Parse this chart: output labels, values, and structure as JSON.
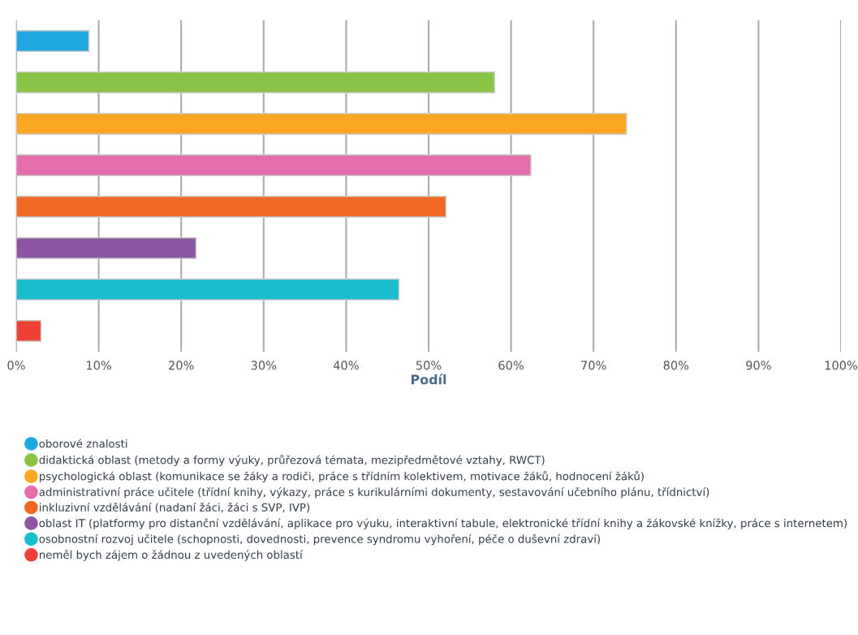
{
  "chart_data": {
    "type": "bar",
    "orientation": "horizontal",
    "xlabel": "Podíl",
    "categories": [
      null,
      null,
      null,
      null,
      null,
      null,
      null,
      null
    ],
    "series": [
      {
        "name": "oborové znalosti",
        "color": "#1ea8df",
        "values": [
          8.8,
          null,
          null,
          null,
          null,
          null,
          null,
          null
        ]
      },
      {
        "name": "didaktická oblast (metody a formy výuky, průřezová témata, mezipředmětové vztahy, RWCT)",
        "color": "#89c447",
        "values": [
          null,
          58.0,
          null,
          null,
          null,
          null,
          null,
          null
        ]
      },
      {
        "name": "psychologická oblast (komunikace se žáky a rodiči, práce s třídním kolektivem, motivace žáků, hodnocení žáků)",
        "color": "#fba723",
        "values": [
          null,
          null,
          74.0,
          null,
          null,
          null,
          null,
          null
        ]
      },
      {
        "name": "administrativní práce učitele (třídní knihy, výkazy, práce s kurikulárními dokumenty, sestavování učebního plánu, třídnictví)",
        "color": "#e56daa",
        "values": [
          null,
          null,
          null,
          62.4,
          null,
          null,
          null,
          null
        ]
      },
      {
        "name": "inkluzivní vzdělávání (nadaní žáci, žáci s SVP, IVP)",
        "color": "#f06723",
        "values": [
          null,
          null,
          null,
          null,
          52.1,
          null,
          null,
          null
        ]
      },
      {
        "name": "oblast IT (platformy pro distanční vzdělávání, aplikace pro výuku, interaktivní tabule, elektronické třídní knihy a žákovské knížky, práce s internetem)",
        "color": "#8e56a2",
        "values": [
          null,
          null,
          null,
          null,
          null,
          21.8,
          null,
          null
        ]
      },
      {
        "name": "osobnostní rozvoj učitele (schopnosti, dovednosti, prevence syndromu vyhoření, péče o duševní zdraví)",
        "color": "#1abdce",
        "values": [
          null,
          null,
          null,
          null,
          null,
          null,
          46.4,
          null
        ]
      },
      {
        "name": "neměl bych zájem o žádnou z uvedených oblastí",
        "color": "#ee4036",
        "values": [
          null,
          null,
          null,
          null,
          null,
          null,
          null,
          3.0
        ]
      }
    ],
    "xlim": [
      0,
      100
    ],
    "xticks": [
      {
        "value": 0,
        "label": "0%"
      },
      {
        "value": 10,
        "label": "10%"
      },
      {
        "value": 20,
        "label": "20%"
      },
      {
        "value": 30,
        "label": "30%"
      },
      {
        "value": 40,
        "label": "40%"
      },
      {
        "value": 50,
        "label": "50%"
      },
      {
        "value": 60,
        "label": "60%"
      },
      {
        "value": 70,
        "label": "70%"
      },
      {
        "value": 80,
        "label": "80%"
      },
      {
        "value": 90,
        "label": "90%"
      },
      {
        "value": 100,
        "label": "100%"
      }
    ],
    "grid": "x",
    "legend": "bottom",
    "marker": "circle",
    "tick_labels": "x"
  }
}
